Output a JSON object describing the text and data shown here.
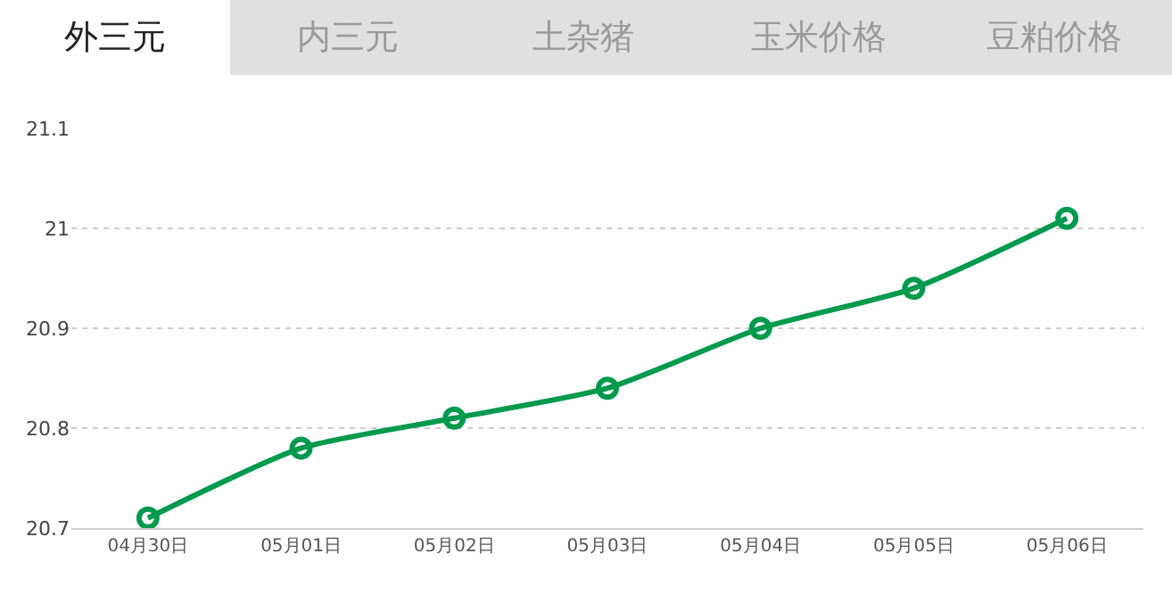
{
  "chart_data": {
    "type": "line",
    "title": "外三元",
    "annotations": [
      "内三元",
      "土杂猪",
      "玉米价格",
      "豆粕价格"
    ],
    "categories": [
      "04月30日",
      "05月01日",
      "05月02日",
      "05月03日",
      "05月04日",
      "05月05日",
      "05月06日"
    ],
    "series": [
      {
        "color": "#009a4e",
        "values": [
          20.71,
          20.78,
          20.81,
          20.84,
          20.9,
          20.94,
          21.01
        ]
      }
    ],
    "ylim": [
      20.7,
      21.1
    ],
    "yticks": [
      20.7,
      20.8,
      20.9,
      21,
      21.1
    ],
    "grid": "y",
    "marker": "circle",
    "line_style": "solid"
  }
}
